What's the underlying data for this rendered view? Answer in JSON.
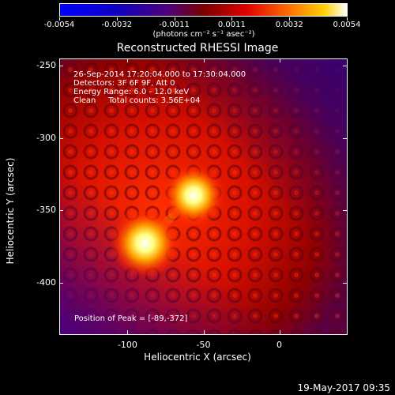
{
  "colorbar": {
    "tick_labels": [
      "-0.0054",
      "-0.0032",
      "-0.0011",
      "0.0011",
      "0.0032",
      "0.0054"
    ],
    "units": "(photons cm⁻² s⁻¹ asec⁻²)"
  },
  "title": "Reconstructed RHESSI Image",
  "info": {
    "line1": "26-Sep-2014 17:20:04.000 to 17:30:04.000",
    "line2": "Detectors: 3F 6F 9F, Att 0",
    "line3": "Energy Range: 6.0 - 12.0 keV",
    "line4": "Clean     Total counts: 3.56E+04"
  },
  "peak_text": "Position of Peak = [-89,-372]",
  "axes": {
    "xlabel": "Heliocentric X (arcsec)",
    "ylabel": "Heliocentric Y (arcsec)",
    "x_ticks": [
      "-100",
      "-50",
      "0"
    ],
    "y_ticks": [
      "-250",
      "-300",
      "-350",
      "-400"
    ],
    "x_range": [
      -145,
      45
    ],
    "y_range": [
      -436,
      -245
    ]
  },
  "sources": [
    {
      "x": -89,
      "y": -372,
      "level": 1.0
    },
    {
      "x": -57,
      "y": -339,
      "level": 0.9
    }
  ],
  "colors": {
    "low": "#2a0060",
    "mid": "#e01000",
    "high": "#ffffe0",
    "fg": "#ffffff",
    "bg": "#000000"
  },
  "timestamp": "19-May-2017 09:35"
}
